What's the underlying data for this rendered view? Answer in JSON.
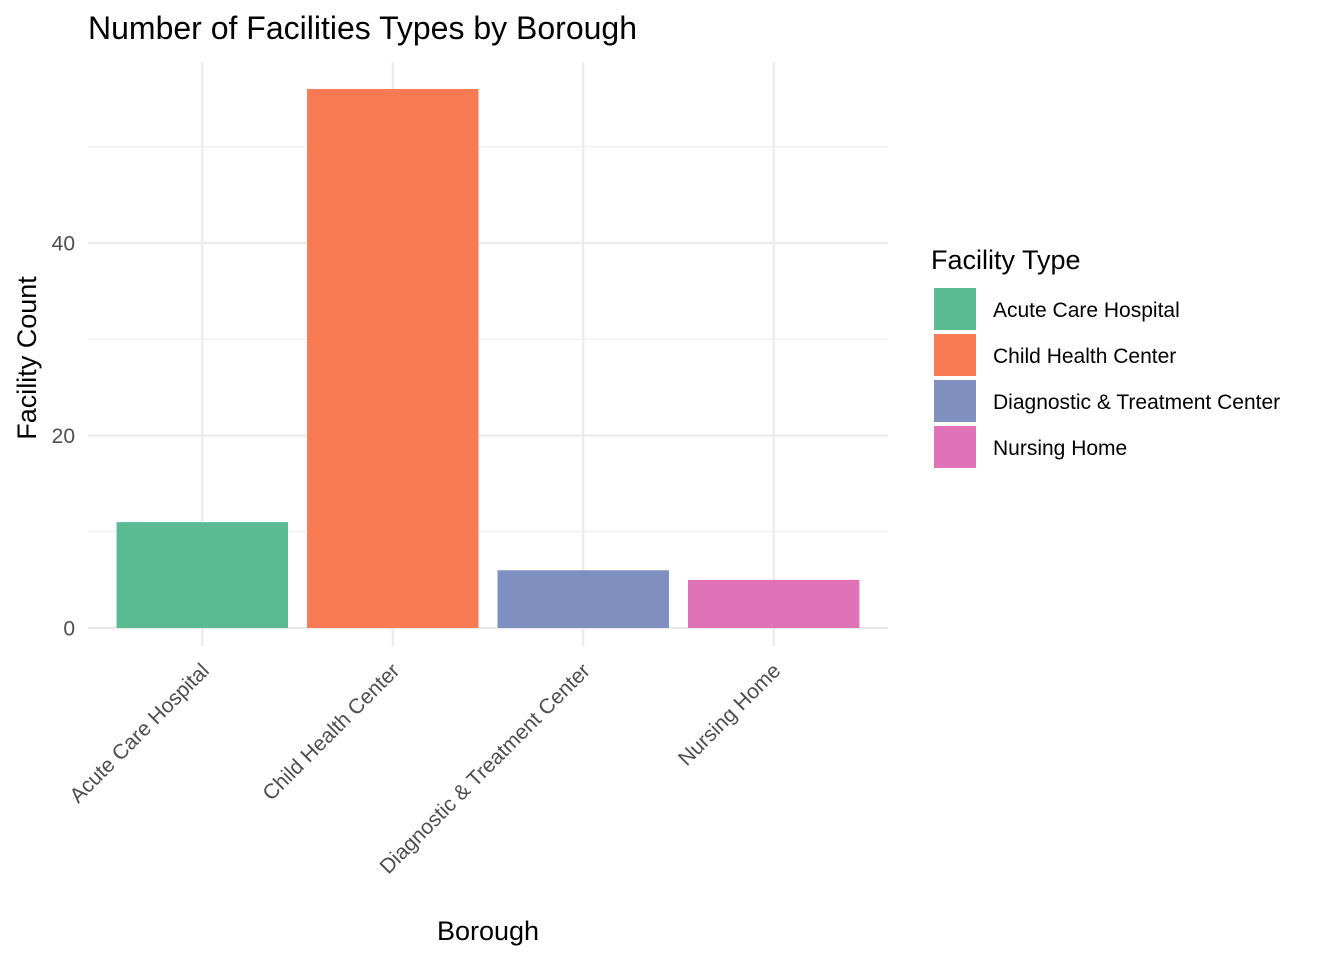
{
  "chart_data": {
    "type": "bar",
    "title": "Number of Facilities Types by Borough",
    "xlabel": "Borough",
    "ylabel": "Facility Count",
    "categories": [
      "Acute Care Hospital",
      "Child Health Center",
      "Diagnostic & Treatment Center",
      "Nursing Home"
    ],
    "values": [
      11,
      56,
      6,
      5
    ],
    "colors": [
      "#59BA94",
      "#F97B53",
      "#7E8FC0",
      "#E073B7"
    ],
    "ylim": [
      0,
      58.8
    ],
    "yticks": [
      0,
      20,
      40
    ],
    "grid": true,
    "legend": {
      "title": "Facility Type",
      "position": "right",
      "entries": [
        "Acute Care Hospital",
        "Child Health Center",
        "Diagnostic & Treatment Center",
        "Nursing Home"
      ]
    }
  }
}
